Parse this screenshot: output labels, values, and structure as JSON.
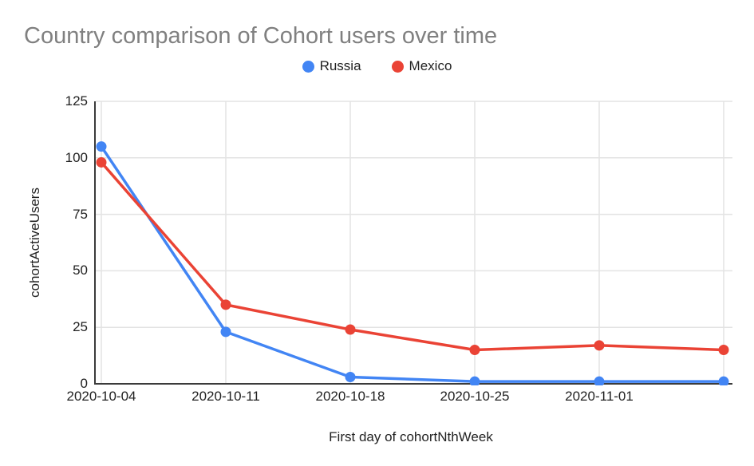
{
  "chart_data": {
    "type": "line",
    "title": "Country comparison of Cohort users over time",
    "xlabel": "First day of cohortNthWeek",
    "ylabel": "cohortActiveUsers",
    "categories": [
      "2020-10-04",
      "2020-10-11",
      "2020-10-18",
      "2020-10-25",
      "2020-11-01",
      ""
    ],
    "series": [
      {
        "name": "Russia",
        "color": "#4285F4",
        "values": [
          105,
          23,
          3,
          1,
          1,
          1
        ]
      },
      {
        "name": "Mexico",
        "color": "#EA4335",
        "values": [
          98,
          35,
          24,
          15,
          17,
          15
        ]
      }
    ],
    "ylim": [
      0,
      125
    ],
    "yticks": [
      0,
      25,
      50,
      75,
      100,
      125
    ],
    "grid": true,
    "legend_position": "top"
  },
  "colors": {
    "series_russia": "#4285F4",
    "series_mexico": "#EA4335",
    "gridline": "#e3e3e3",
    "axis_line": "#3b3b3b",
    "title_text": "#808080",
    "tick_text": "#222222"
  }
}
